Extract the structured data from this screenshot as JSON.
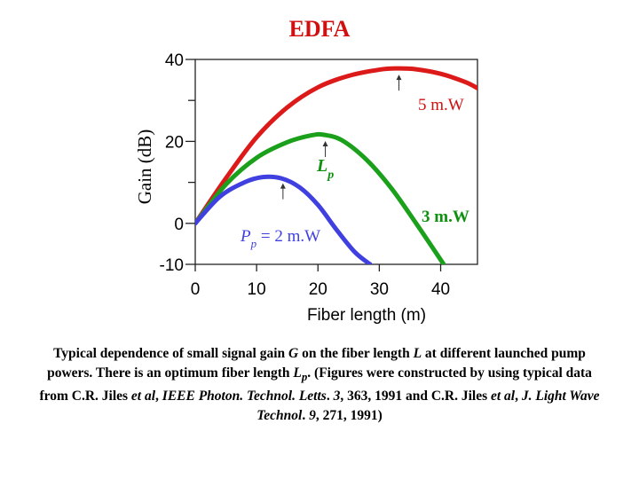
{
  "slide": {
    "title": "EDFA"
  },
  "chart_data": {
    "type": "line",
    "xlabel": "Fiber length (m)",
    "ylabel": "Gain (dB)",
    "xlim": [
      0,
      46
    ],
    "ylim": [
      -10,
      40
    ],
    "x_ticks": [
      0,
      10,
      20,
      30,
      40
    ],
    "x_tick_labels": [
      "0",
      "10",
      "20",
      "30",
      "40"
    ],
    "y_major_ticks": [
      -10,
      0,
      20,
      40
    ],
    "y_tick_labels": [
      "-10",
      "0",
      "20",
      "40"
    ],
    "y_minor_ticks": [
      10,
      30
    ],
    "grid": false,
    "series": [
      {
        "name": "5 m.W",
        "color": "#dd1a1a",
        "x": [
          0,
          5,
          10,
          15,
          20,
          25,
          30,
          33,
          36,
          40,
          44,
          46
        ],
        "y": [
          0,
          11,
          21,
          28.3,
          33.2,
          36,
          37.5,
          37.8,
          37.6,
          36.5,
          34.5,
          33
        ]
      },
      {
        "name": "3 m.W",
        "color": "#1aa01a",
        "x": [
          0,
          5,
          10,
          15,
          19,
          21,
          24,
          28,
          32,
          36,
          40.5
        ],
        "y": [
          0,
          9.5,
          16,
          19.8,
          21.5,
          21.6,
          20.2,
          15.4,
          8.5,
          0,
          -10
        ]
      },
      {
        "name": "P_p = 2 m.W",
        "color": "#4040e0",
        "x": [
          0,
          4,
          8,
          11,
          14,
          17,
          20,
          23,
          26,
          28.5
        ],
        "y": [
          0,
          6.5,
          10,
          11.3,
          11,
          8.8,
          4.5,
          -1.5,
          -7,
          -10
        ]
      }
    ],
    "optimum_markers": [
      {
        "series": "5 m.W",
        "x": 33.2,
        "y": 37.8
      },
      {
        "series": "3 m.W",
        "x": 21.2,
        "y": 21.6
      },
      {
        "series": "P_p = 2 m.W",
        "x": 14.3,
        "y": 11.3
      }
    ],
    "annotations": {
      "label_5mw": "5 m.W",
      "label_3mw": "3 m.W",
      "label_lp_main": "L",
      "label_lp_sub": "p",
      "label_pp_main": "P",
      "label_pp_sub": "p",
      "label_pp_rest": " = 2 m.W"
    }
  },
  "caption": {
    "t1": "Typical dependence of small signal gain ",
    "G": "G",
    "t2": " on the fiber length ",
    "L": "L",
    "t3": " at different launched pump powers. There is an optimum fiber length ",
    "Lp_main": "L",
    "Lp_sub": "p",
    "t4": ". (Figures were constructed by using typical data from C.R. Jiles ",
    "etal1": "et al",
    "t5": ", ",
    "journal1": "IEEE Photon. Technol. Letts",
    "t6": ". ",
    "vol1": "3",
    "t7": ", 363, 1991 and C.R. Jiles ",
    "etal2": "et al",
    "t8": ", ",
    "journal2": "J. Light Wave Technol",
    "t9": ". ",
    "vol2": "9",
    "t10": ", 271, 1991)"
  }
}
